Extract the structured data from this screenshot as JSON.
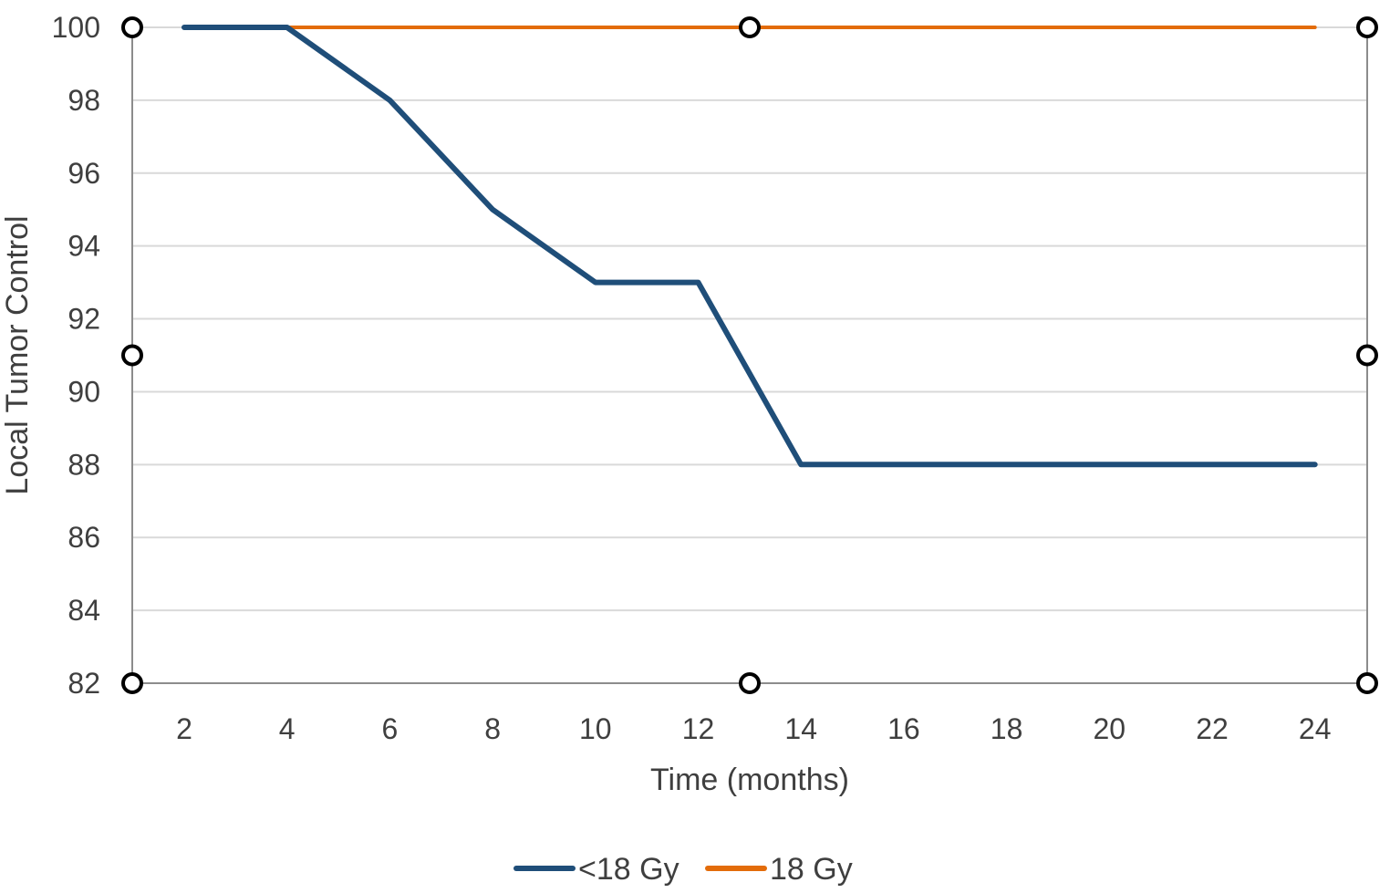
{
  "chart_data": {
    "type": "line",
    "xlabel": "Time (months)",
    "ylabel": "Local Tumor Control",
    "categories": [
      "2",
      "4",
      "6",
      "8",
      "10",
      "12",
      "14",
      "16",
      "18",
      "20",
      "22",
      "24"
    ],
    "x": [
      2,
      4,
      6,
      8,
      10,
      12,
      14,
      16,
      18,
      20,
      22,
      24
    ],
    "series": [
      {
        "name": "<18 Gy",
        "color": "#1f4e79",
        "values": [
          100,
          100,
          98,
          95,
          93,
          93,
          88,
          88,
          88,
          88,
          88,
          88
        ]
      },
      {
        "name": "18 Gy",
        "color": "#e36c0a",
        "values": [
          100,
          100,
          100,
          100,
          100,
          100,
          100,
          100,
          100,
          100,
          100,
          100
        ]
      }
    ],
    "ylim": [
      82,
      100
    ],
    "yticks": [
      82,
      84,
      86,
      88,
      90,
      92,
      94,
      96,
      98,
      100
    ],
    "grid": true,
    "legend_position": "bottom-center",
    "selection_handles_visible": true
  }
}
